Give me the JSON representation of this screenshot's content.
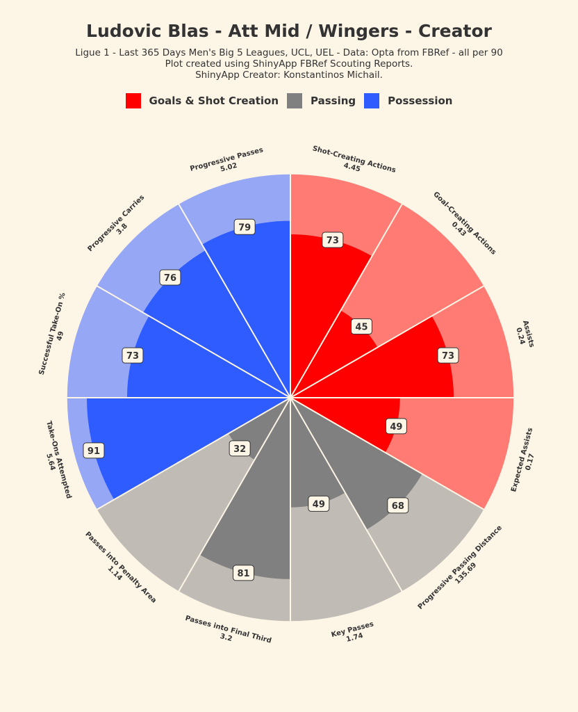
{
  "header": {
    "title": "Ludovic Blas - Att Mid / Wingers - Creator",
    "subtitle_lines": [
      "Ligue 1 - Last 365 Days Men's Big 5 Leagues, UCL, UEL  - Data: Opta from FBRef - all per 90",
      "Plot created using ShinyApp FBRef Scouting Reports.",
      "ShinyApp Creator: Konstantinos Michail."
    ]
  },
  "legend": [
    {
      "label": "Goals & Shot Creation",
      "color": "#ff0000"
    },
    {
      "label": "Passing",
      "color": "#808080"
    },
    {
      "label": "Possession",
      "color": "#2e5cff"
    }
  ],
  "chart_data": {
    "type": "pizza",
    "title": "Ludovic Blas - Att Mid / Wingers - Creator",
    "value_range": [
      0,
      100
    ],
    "series_colors": {
      "Goals & Shot Creation": {
        "fill": "#ff0000",
        "bg": "#ff7b73"
      },
      "Passing": {
        "fill": "#808080",
        "bg": "#c0bbb5"
      },
      "Possession": {
        "fill": "#2e5cff",
        "bg": "#96a8f5"
      }
    },
    "slices": [
      {
        "stat": "Shot-Creating Actions",
        "per90": "4.45",
        "percentile": 73,
        "group": "Goals & Shot Creation"
      },
      {
        "stat": "Goal-Creating Actions",
        "per90": "0.43",
        "percentile": 45,
        "group": "Goals & Shot Creation"
      },
      {
        "stat": "Assists",
        "per90": "0.24",
        "percentile": 73,
        "group": "Goals & Shot Creation"
      },
      {
        "stat": "Expected Assists",
        "per90": "0.17",
        "percentile": 49,
        "group": "Goals & Shot Creation"
      },
      {
        "stat": "Progressive Passing Distance",
        "per90": "135.69",
        "percentile": 68,
        "group": "Passing"
      },
      {
        "stat": "Key Passes",
        "per90": "1.74",
        "percentile": 49,
        "group": "Passing"
      },
      {
        "stat": "Passes into Final Third",
        "per90": "3.2",
        "percentile": 81,
        "group": "Passing"
      },
      {
        "stat": "Passes into Penalty Area",
        "per90": "1.14",
        "percentile": 32,
        "group": "Passing"
      },
      {
        "stat": "Take-Ons Attempted",
        "per90": "5.64",
        "percentile": 91,
        "group": "Possession"
      },
      {
        "stat": "Successful Take-On %",
        "per90": "49",
        "percentile": 73,
        "group": "Possession"
      },
      {
        "stat": "Progressive Carries",
        "per90": "3.8",
        "percentile": 76,
        "group": "Possession"
      },
      {
        "stat": "Progressive Passes",
        "per90": "5.02",
        "percentile": 79,
        "group": "Possession"
      }
    ]
  }
}
